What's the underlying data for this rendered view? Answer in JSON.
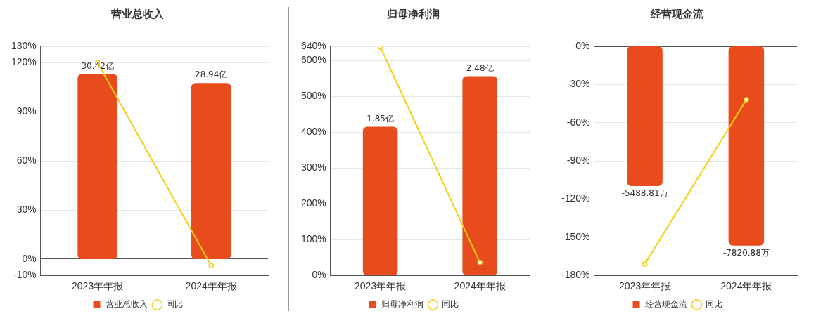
{
  "chart_data": [
    {
      "type": "bar",
      "title": "营业总收入",
      "categories": [
        "2023年年报",
        "2024年年报"
      ],
      "series": [
        {
          "name": "营业总收入",
          "axis": "y2",
          "color": "#e84c1c",
          "values": [
            30.42,
            28.94
          ],
          "value_labels": [
            "30.42亿",
            "28.94亿"
          ]
        },
        {
          "name": "同比",
          "type": "line",
          "color": "#f2cf16",
          "values": [
            120,
            -4
          ]
        }
      ],
      "ylim": [
        -10,
        130
      ],
      "yticks": [
        {
          "value": -10,
          "label": "-10%"
        },
        {
          "value": 0,
          "label": "0%"
        },
        {
          "value": 30,
          "label": "30%"
        },
        {
          "value": 60,
          "label": "60%"
        },
        {
          "value": 90,
          "label": "90%"
        },
        {
          "value": 120,
          "label": "120%"
        },
        {
          "value": 130,
          "label": "130%"
        }
      ],
      "grid": "y",
      "legend": "bottom",
      "marker": "circle",
      "tick_labels": "xy"
    },
    {
      "type": "bar",
      "title": "归母净利润",
      "categories": [
        "2023年年报",
        "2024年年报"
      ],
      "series": [
        {
          "name": "归母净利润",
          "axis": "y2",
          "color": "#e84c1c",
          "values": [
            1.85,
            2.48
          ],
          "value_labels": [
            "1.85亿",
            "2.48亿"
          ]
        },
        {
          "name": "同比",
          "type": "line",
          "color": "#f2cf16",
          "values": [
            638,
            36
          ]
        }
      ],
      "ylim": [
        0,
        640
      ],
      "yticks": [
        {
          "value": 0,
          "label": "0%"
        },
        {
          "value": 100,
          "label": "100%"
        },
        {
          "value": 200,
          "label": "200%"
        },
        {
          "value": 300,
          "label": "300%"
        },
        {
          "value": 400,
          "label": "400%"
        },
        {
          "value": 500,
          "label": "500%"
        },
        {
          "value": 600,
          "label": "600%"
        },
        {
          "value": 640,
          "label": "640%"
        }
      ],
      "grid": "y",
      "legend": "bottom",
      "marker": "circle",
      "tick_labels": "xy"
    },
    {
      "type": "bar",
      "title": "经营现金流",
      "categories": [
        "2023年年报",
        "2024年年报"
      ],
      "series": [
        {
          "name": "经营现金流",
          "axis": "y2",
          "color": "#e84c1c",
          "values": [
            -5488.81,
            -7820.88
          ],
          "value_labels": [
            "-5488.81万",
            "-7820.88万"
          ]
        },
        {
          "name": "同比",
          "type": "line",
          "color": "#f2cf16",
          "values": [
            -171,
            -42
          ]
        }
      ],
      "ylim": [
        -180,
        0
      ],
      "yticks": [
        {
          "value": -180,
          "label": "-180%"
        },
        {
          "value": -150,
          "label": "-150%"
        },
        {
          "value": -120,
          "label": "-120%"
        },
        {
          "value": -90,
          "label": "-90%"
        },
        {
          "value": -60,
          "label": "-60%"
        },
        {
          "value": -30,
          "label": "-30%"
        },
        {
          "value": 0,
          "label": "0%"
        }
      ],
      "grid": "y",
      "legend": "bottom",
      "marker": "circle",
      "tick_labels": "xy"
    }
  ]
}
